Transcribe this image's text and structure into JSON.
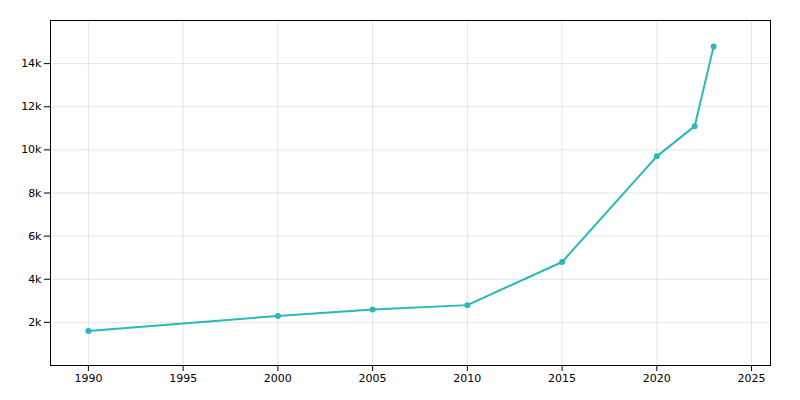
{
  "chart_data": {
    "type": "line",
    "x": [
      1990,
      2000,
      2005,
      2010,
      2015,
      2020,
      2022,
      2023
    ],
    "values": [
      1600,
      2300,
      2600,
      2800,
      4800,
      9700,
      11100,
      14800
    ],
    "color": "#2ab8b8",
    "marker": "o",
    "xlim": [
      1988,
      2026
    ],
    "ylim": [
      0,
      16000
    ],
    "xticks": [
      1990,
      1995,
      2000,
      2005,
      2010,
      2015,
      2020,
      2025
    ],
    "yticks": [
      {
        "value": 2000,
        "label": "2k"
      },
      {
        "value": 4000,
        "label": "4k"
      },
      {
        "value": 6000,
        "label": "6k"
      },
      {
        "value": 8000,
        "label": "8k"
      },
      {
        "value": 10000,
        "label": "10k"
      },
      {
        "value": 12000,
        "label": "12k"
      },
      {
        "value": 14000,
        "label": "14k"
      }
    ],
    "grid": true
  }
}
